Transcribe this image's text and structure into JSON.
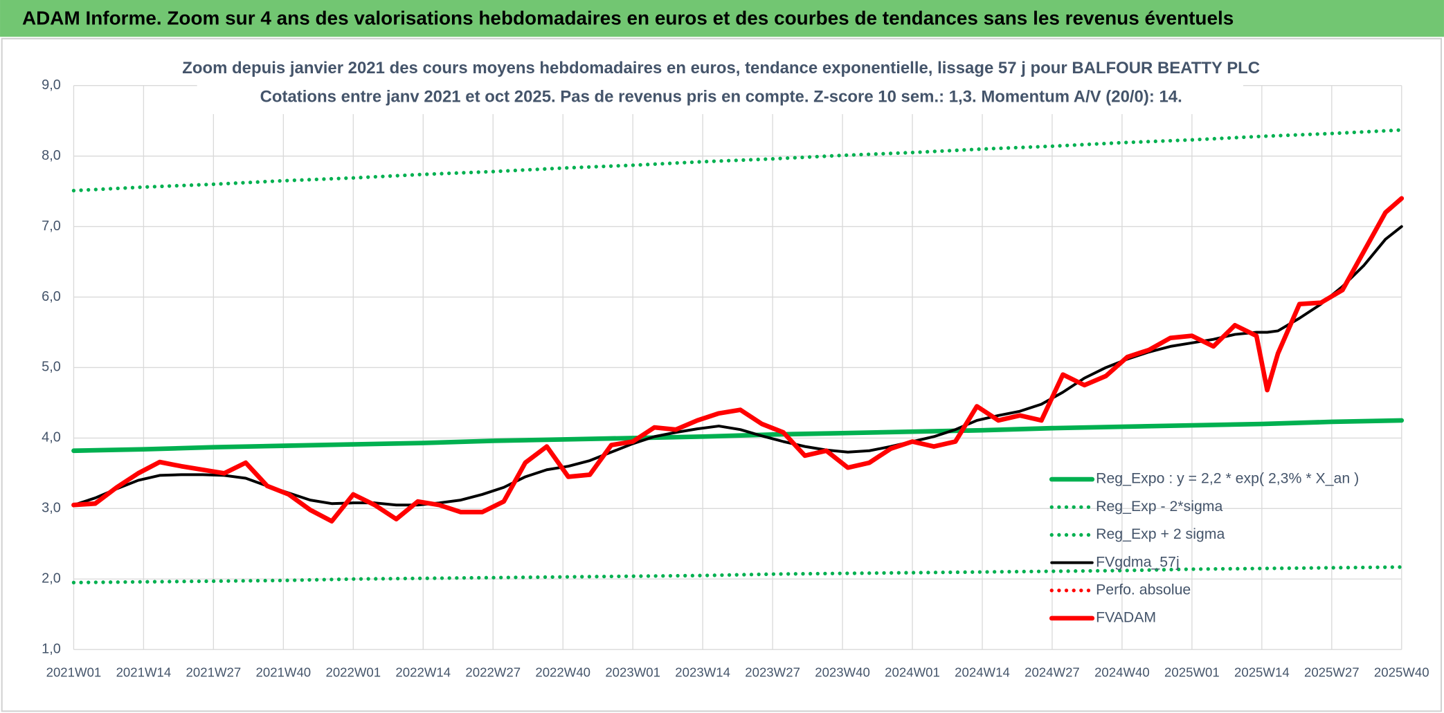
{
  "header": {
    "title": "ADAM Informe. Zoom sur 4 ans des valorisations hebdomadaires en euros et des courbes de tendances sans les revenus éventuels"
  },
  "chart_data": {
    "type": "line",
    "title": "Zoom depuis janvier 2021 des cours moyens hebdomadaires en euros, tendance exponentielle, lissage 57 j pour BALFOUR BEATTY PLC",
    "subtitle": "Cotations entre janv 2021 et oct 2025. Pas de revenus pris en compte. Z-score 10 sem.: 1,3. Momentum A/V (20/0): 14.",
    "xlim": [
      0,
      247
    ],
    "xticks": [
      {
        "value": 0,
        "label": "2021W01"
      },
      {
        "value": 13,
        "label": "2021W14"
      },
      {
        "value": 26,
        "label": "2021W27"
      },
      {
        "value": 39,
        "label": "2021W40"
      },
      {
        "value": 52,
        "label": "2022W01"
      },
      {
        "value": 65,
        "label": "2022W14"
      },
      {
        "value": 78,
        "label": "2022W27"
      },
      {
        "value": 91,
        "label": "2022W40"
      },
      {
        "value": 104,
        "label": "2023W01"
      },
      {
        "value": 117,
        "label": "2023W14"
      },
      {
        "value": 130,
        "label": "2023W27"
      },
      {
        "value": 143,
        "label": "2023W40"
      },
      {
        "value": 156,
        "label": "2024W01"
      },
      {
        "value": 169,
        "label": "2024W14"
      },
      {
        "value": 182,
        "label": "2024W27"
      },
      {
        "value": 195,
        "label": "2024W40"
      },
      {
        "value": 208,
        "label": "2025W01"
      },
      {
        "value": 221,
        "label": "2025W14"
      },
      {
        "value": 234,
        "label": "2025W27"
      },
      {
        "value": 247,
        "label": "2025W40"
      }
    ],
    "ylim": [
      1,
      9
    ],
    "yticks": [
      {
        "value": 1,
        "label": "1,0"
      },
      {
        "value": 2,
        "label": "2,0"
      },
      {
        "value": 3,
        "label": "3,0"
      },
      {
        "value": 4,
        "label": "4,0"
      },
      {
        "value": 5,
        "label": "5,0"
      },
      {
        "value": 6,
        "label": "6,0"
      },
      {
        "value": 7,
        "label": "7,0"
      },
      {
        "value": 8,
        "label": "8,0"
      },
      {
        "value": 9,
        "label": "9,0"
      }
    ],
    "grid": true,
    "legend": "lower right",
    "series": [
      {
        "name": "Reg_Expo : y = 2,2 * exp( 2,3% *  X_an )",
        "color": "#00b050",
        "style": "solid",
        "x": [
          0,
          13,
          26,
          39,
          52,
          65,
          78,
          91,
          104,
          117,
          130,
          143,
          156,
          169,
          182,
          195,
          208,
          221,
          234,
          247
        ],
        "values": [
          3.82,
          3.84,
          3.87,
          3.89,
          3.91,
          3.93,
          3.96,
          3.98,
          4.0,
          4.02,
          4.05,
          4.07,
          4.09,
          4.11,
          4.14,
          4.16,
          4.18,
          4.2,
          4.23,
          4.25
        ]
      },
      {
        "name": "Reg_Exp - 2*sigma",
        "color": "#00b050",
        "style": "dotted",
        "x": [
          0,
          13,
          26,
          39,
          52,
          65,
          78,
          91,
          104,
          117,
          130,
          143,
          156,
          169,
          182,
          195,
          208,
          221,
          234,
          247
        ],
        "values": [
          1.95,
          1.96,
          1.97,
          1.98,
          2.0,
          2.01,
          2.02,
          2.03,
          2.04,
          2.05,
          2.07,
          2.08,
          2.09,
          2.1,
          2.11,
          2.12,
          2.14,
          2.15,
          2.16,
          2.17
        ]
      },
      {
        "name": "Reg_Exp + 2 sigma",
        "color": "#00b050",
        "style": "dotted",
        "x": [
          0,
          13,
          26,
          39,
          52,
          65,
          78,
          91,
          104,
          117,
          130,
          143,
          156,
          169,
          182,
          195,
          208,
          221,
          234,
          247
        ],
        "values": [
          7.51,
          7.56,
          7.6,
          7.65,
          7.69,
          7.74,
          7.78,
          7.83,
          7.87,
          7.92,
          7.96,
          8.01,
          8.05,
          8.1,
          8.14,
          8.19,
          8.23,
          8.28,
          8.32,
          8.37
        ]
      },
      {
        "name": "FVgdma_57j",
        "color": "#000000",
        "style": "thin",
        "x": [
          0,
          4,
          8,
          12,
          16,
          20,
          24,
          28,
          32,
          36,
          40,
          44,
          48,
          52,
          56,
          60,
          64,
          68,
          72,
          76,
          80,
          84,
          88,
          92,
          96,
          100,
          104,
          108,
          112,
          116,
          120,
          124,
          128,
          132,
          136,
          140,
          144,
          148,
          152,
          156,
          160,
          164,
          168,
          172,
          176,
          180,
          184,
          188,
          192,
          196,
          200,
          204,
          208,
          212,
          216,
          220,
          222,
          224,
          228,
          232,
          236,
          240,
          244,
          247
        ],
        "values": [
          3.05,
          3.15,
          3.28,
          3.4,
          3.47,
          3.48,
          3.48,
          3.47,
          3.43,
          3.32,
          3.22,
          3.12,
          3.07,
          3.08,
          3.08,
          3.05,
          3.05,
          3.08,
          3.12,
          3.2,
          3.3,
          3.45,
          3.55,
          3.6,
          3.68,
          3.8,
          3.92,
          4.02,
          4.08,
          4.13,
          4.17,
          4.12,
          4.03,
          3.95,
          3.88,
          3.83,
          3.8,
          3.82,
          3.88,
          3.95,
          4.02,
          4.12,
          4.25,
          4.32,
          4.38,
          4.48,
          4.65,
          4.85,
          5.0,
          5.12,
          5.22,
          5.3,
          5.35,
          5.4,
          5.47,
          5.5,
          5.5,
          5.52,
          5.7,
          5.9,
          6.15,
          6.45,
          6.82,
          7.0
        ]
      },
      {
        "name": "Perfo. absolue",
        "color": "#ff0000",
        "style": "dotted",
        "x": [],
        "values": []
      },
      {
        "name": "FVADAM",
        "color": "#ff0000",
        "style": "thick",
        "x": [
          0,
          4,
          8,
          12,
          16,
          20,
          24,
          28,
          32,
          36,
          40,
          44,
          48,
          52,
          56,
          60,
          64,
          68,
          72,
          76,
          80,
          84,
          88,
          92,
          96,
          100,
          104,
          108,
          112,
          116,
          120,
          124,
          128,
          132,
          136,
          140,
          144,
          148,
          152,
          156,
          160,
          164,
          168,
          172,
          176,
          180,
          184,
          188,
          192,
          196,
          200,
          204,
          208,
          212,
          216,
          220,
          222,
          224,
          228,
          232,
          236,
          240,
          244,
          247
        ],
        "values": [
          3.05,
          3.07,
          3.3,
          3.5,
          3.66,
          3.6,
          3.55,
          3.5,
          3.65,
          3.32,
          3.2,
          2.98,
          2.82,
          3.2,
          3.05,
          2.85,
          3.1,
          3.05,
          2.95,
          2.95,
          3.1,
          3.65,
          3.88,
          3.45,
          3.48,
          3.9,
          3.95,
          4.15,
          4.12,
          4.25,
          4.35,
          4.4,
          4.2,
          4.08,
          3.75,
          3.82,
          3.58,
          3.65,
          3.85,
          3.95,
          3.88,
          3.95,
          4.45,
          4.25,
          4.32,
          4.25,
          4.9,
          4.75,
          4.88,
          5.15,
          5.25,
          5.42,
          5.45,
          5.3,
          5.6,
          5.45,
          4.68,
          5.2,
          5.9,
          5.92,
          6.1,
          6.65,
          7.2,
          7.4
        ]
      }
    ]
  }
}
